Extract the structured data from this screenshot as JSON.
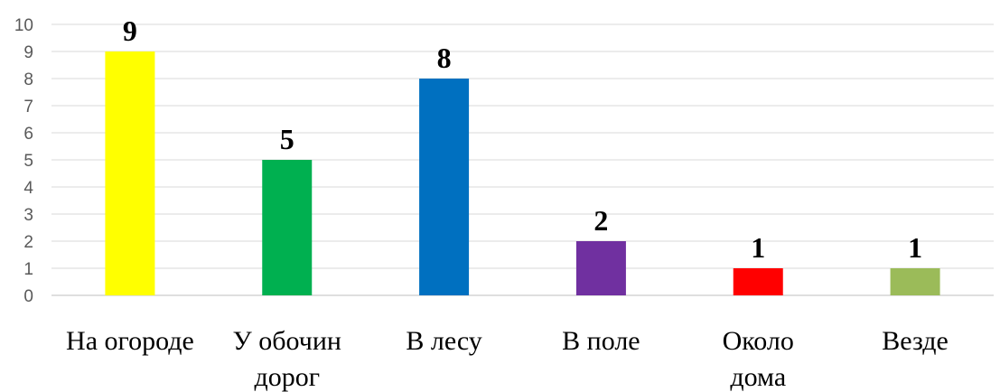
{
  "chart_data": {
    "type": "bar",
    "categories": [
      [
        "На огороде"
      ],
      [
        "У обочин",
        "дорог"
      ],
      [
        "В лесу"
      ],
      [
        "В поле"
      ],
      [
        "Около",
        "дома"
      ],
      [
        "Везде"
      ]
    ],
    "values": [
      9,
      5,
      8,
      2,
      1,
      1
    ],
    "colors": [
      "#ffff00",
      "#00b050",
      "#0070c0",
      "#7030a0",
      "#ff0000",
      "#9bbb59"
    ],
    "ylim": [
      0,
      10
    ],
    "yticks": [
      "0",
      "1",
      "2",
      "3",
      "4",
      "5",
      "6",
      "7",
      "8",
      "9",
      "10"
    ],
    "grid": true,
    "data_labels": [
      "9",
      "5",
      "8",
      "2",
      "1",
      "1"
    ],
    "title": "",
    "xlabel": "",
    "ylabel": ""
  }
}
